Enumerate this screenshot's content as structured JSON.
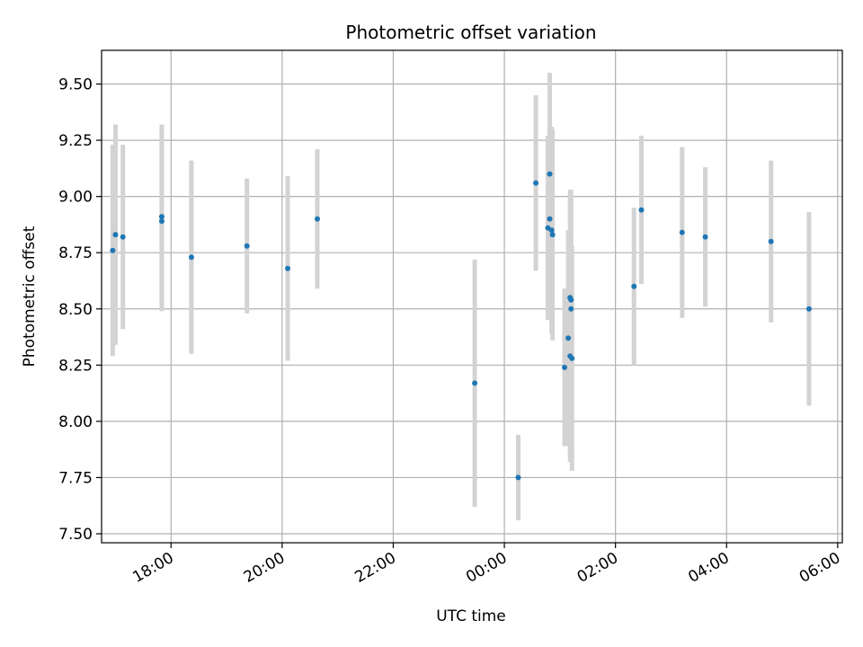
{
  "chart_data": {
    "type": "scatter",
    "title": "Photometric offset variation",
    "xlabel": "UTC time",
    "ylabel": "Photometric offset",
    "x_unit": "UTC time (HH:MM), points from 16:56 to 05:28 the following day",
    "xlim": [
      "16:45",
      "06:05"
    ],
    "ylim": [
      7.46,
      9.65
    ],
    "x_ticks": [
      "18:00",
      "20:00",
      "22:00",
      "00:00",
      "02:00",
      "04:00",
      "06:00"
    ],
    "y_ticks": [
      "7.50",
      "7.75",
      "8.00",
      "8.25",
      "8.50",
      "8.75",
      "9.00",
      "9.25",
      "9.50"
    ],
    "grid": true,
    "legend": "none",
    "point_color": "#1f77b4",
    "errorbar_color": "#d3d3d3",
    "series": [
      {
        "points": [
          {
            "x": "16:57",
            "y": 8.76,
            "err": 0.47
          },
          {
            "x": "17:00",
            "y": 8.83,
            "err": 0.49
          },
          {
            "x": "17:08",
            "y": 8.82,
            "err": 0.41
          },
          {
            "x": "17:50",
            "y": 8.91,
            "err": 0.41
          },
          {
            "x": "17:50",
            "y": 8.89,
            "err": 0.4
          },
          {
            "x": "18:22",
            "y": 8.73,
            "err": 0.43
          },
          {
            "x": "19:22",
            "y": 8.78,
            "err": 0.3
          },
          {
            "x": "20:06",
            "y": 8.68,
            "err": 0.41
          },
          {
            "x": "20:38",
            "y": 8.9,
            "err": 0.31
          },
          {
            "x": "23:28",
            "y": 8.17,
            "err": 0.55
          },
          {
            "x": "00:15",
            "y": 7.75,
            "err": 0.19
          },
          {
            "x": "00:34",
            "y": 9.06,
            "err": 0.39
          },
          {
            "x": "00:47",
            "y": 8.86,
            "err": 0.41
          },
          {
            "x": "00:49",
            "y": 8.9,
            "err": 0.41
          },
          {
            "x": "00:49",
            "y": 9.1,
            "err": 0.45
          },
          {
            "x": "00:51",
            "y": 8.85,
            "err": 0.46
          },
          {
            "x": "00:52",
            "y": 8.83,
            "err": 0.47
          },
          {
            "x": "01:05",
            "y": 8.24,
            "err": 0.35
          },
          {
            "x": "01:09",
            "y": 8.37,
            "err": 0.48
          },
          {
            "x": "01:11",
            "y": 8.55,
            "err": 0.48
          },
          {
            "x": "01:11",
            "y": 8.29,
            "err": 0.47
          },
          {
            "x": "01:12",
            "y": 8.54,
            "err": 0.49
          },
          {
            "x": "01:12",
            "y": 8.5,
            "err": 0.47
          },
          {
            "x": "01:13",
            "y": 8.28,
            "err": 0.5
          },
          {
            "x": "02:20",
            "y": 8.6,
            "err": 0.35
          },
          {
            "x": "02:28",
            "y": 8.94,
            "err": 0.33
          },
          {
            "x": "03:12",
            "y": 8.84,
            "err": 0.38
          },
          {
            "x": "03:37",
            "y": 8.82,
            "err": 0.31
          },
          {
            "x": "04:48",
            "y": 8.8,
            "err": 0.36
          },
          {
            "x": "05:29",
            "y": 8.5,
            "err": 0.43
          }
        ]
      }
    ]
  }
}
